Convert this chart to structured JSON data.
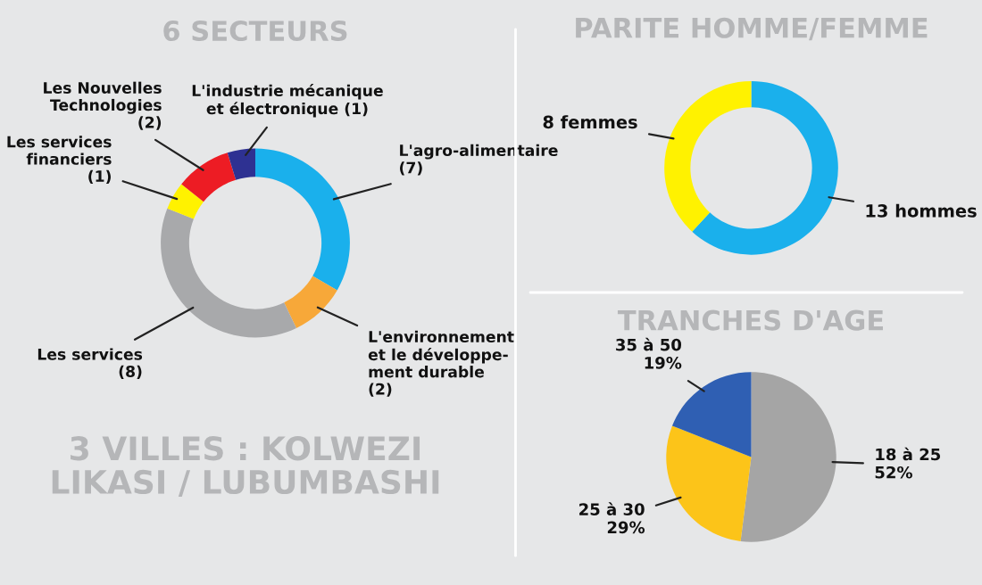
{
  "chart_data": [
    {
      "type": "donut",
      "title": "6 SECTEURS",
      "categories": [
        "L'agro-alimentaire",
        "L'environnement\net le développe-\nment durable",
        "Les services",
        "Les services\nfinanciers",
        "Les Nouvelles\nTechnologies",
        "L'industrie mécanique\net électronique"
      ],
      "values": [
        7,
        2,
        8,
        1,
        2,
        1
      ],
      "value_labels": [
        "(7)",
        "(2)",
        "(8)",
        "(1)",
        "(2)",
        "(1)"
      ],
      "colors": [
        "#1ab0ec",
        "#f7a839",
        "#a8a9ab",
        "#fff200",
        "#ed1c24",
        "#2e3192"
      ],
      "annotations": [
        "3 VILLES : KOLWEZI\nLIKASI / LUBUMBASHI"
      ]
    },
    {
      "type": "donut",
      "title": "PARITE HOMME/FEMME",
      "categories": [
        "hommes",
        "femmes"
      ],
      "values": [
        13,
        8
      ],
      "value_labels": [
        "13",
        "8"
      ],
      "colors": [
        "#1ab0ec",
        "#fff200"
      ]
    },
    {
      "type": "pie",
      "title": "TRANCHES D'AGE",
      "categories": [
        "18 à 25",
        "25 à 30",
        "35 à 50"
      ],
      "values": [
        52,
        29,
        19
      ],
      "value_labels": [
        "52%",
        "29%",
        "19%"
      ],
      "colors": [
        "#a5a5a5",
        "#fcc419",
        "#2f5fb3"
      ]
    }
  ]
}
